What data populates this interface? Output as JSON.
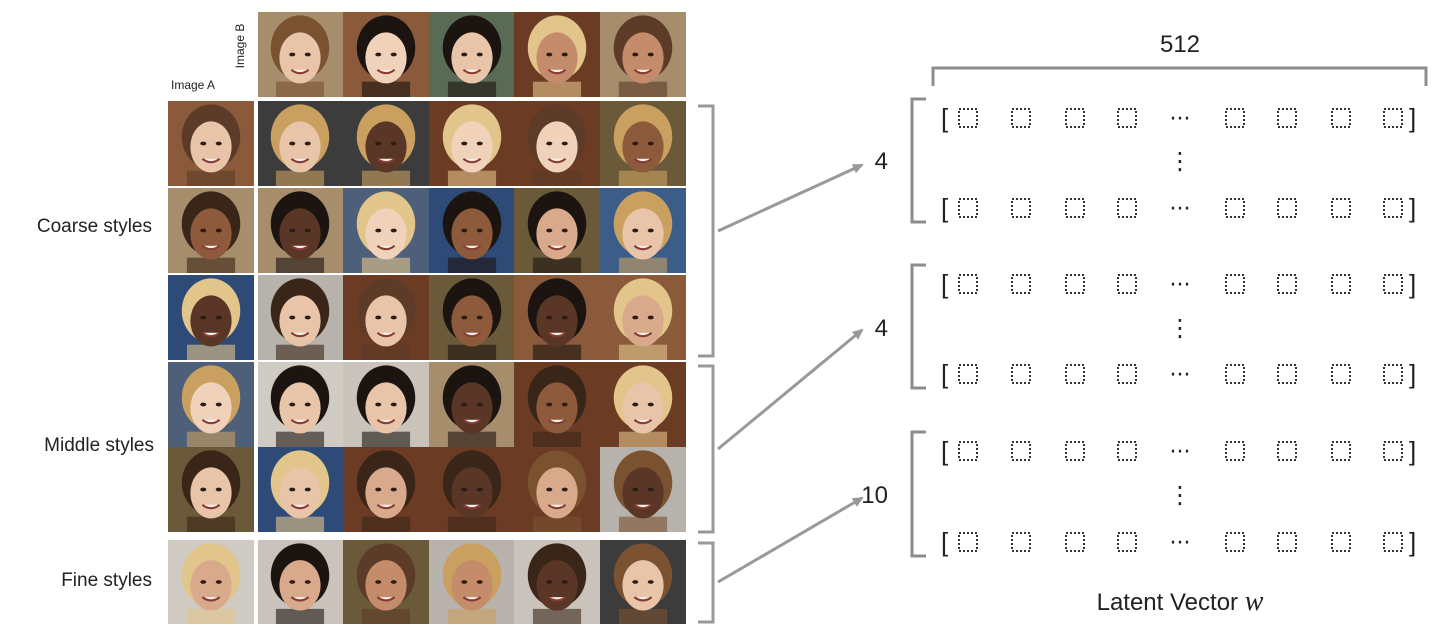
{
  "grid": {
    "image_b_label": "Image B",
    "image_a_label": "Image A",
    "style_groups": [
      {
        "label": "Coarse styles",
        "rows": 3
      },
      {
        "label": "Middle styles",
        "rows": 2
      },
      {
        "label": "Fine styles",
        "rows": 1
      }
    ]
  },
  "latent": {
    "dimension_label": "512",
    "group_counts": [
      "4",
      "4",
      "10"
    ],
    "row_entry_placeholder": "⬚",
    "ellipsis": "···",
    "vertical_ellipsis": "⋮",
    "left_bracket": "[",
    "right_bracket": "]",
    "caption": "Latent Vector",
    "caption_symbol": "w"
  },
  "colors": {
    "line": "#8c8c8c",
    "text": "#222222"
  }
}
